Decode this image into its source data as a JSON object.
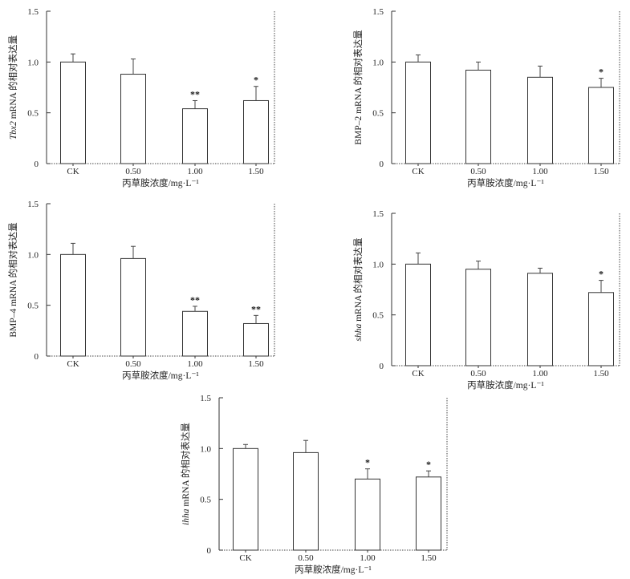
{
  "chart_data": [
    {
      "type": "bar",
      "categories": [
        "CK",
        "0.50",
        "1.00",
        "1.50"
      ],
      "values": [
        1.0,
        0.88,
        0.54,
        0.62
      ],
      "errors": [
        0.08,
        0.15,
        0.08,
        0.14
      ],
      "significance": [
        "",
        "",
        "**",
        "*"
      ],
      "xlabel": "丙草胺浓度/mg·L⁻¹",
      "ylabel_italic": "Tbx2",
      "ylabel_rest": " mRNA 的相对表达量",
      "yticks": [
        "0",
        "0.5",
        "1.0",
        "1.5"
      ],
      "ylim": [
        0,
        1.5
      ]
    },
    {
      "type": "bar",
      "categories": [
        "CK",
        "0.50",
        "1.00",
        "1.50"
      ],
      "values": [
        1.0,
        0.92,
        0.85,
        0.75
      ],
      "errors": [
        0.07,
        0.08,
        0.11,
        0.09
      ],
      "significance": [
        "",
        "",
        "",
        "*"
      ],
      "xlabel": "丙草胺浓度/mg·L⁻¹",
      "ylabel_italic": "",
      "ylabel_rest": "BMP–2 mRNA 的相对表达量",
      "yticks": [
        "0",
        "0.5",
        "1.0",
        "1.5"
      ],
      "ylim": [
        0,
        1.5
      ]
    },
    {
      "type": "bar",
      "categories": [
        "CK",
        "0.50",
        "1.00",
        "1.50"
      ],
      "values": [
        1.0,
        0.96,
        0.44,
        0.32
      ],
      "errors": [
        0.11,
        0.12,
        0.05,
        0.08
      ],
      "significance": [
        "",
        "",
        "**",
        "**"
      ],
      "xlabel": "丙草胺浓度/mg·L⁻¹",
      "ylabel_italic": "",
      "ylabel_rest": "BMP–4 mRNA 的相对表达量",
      "yticks": [
        "0",
        "0.5",
        "1.0",
        "1.5"
      ],
      "ylim": [
        0,
        1.5
      ]
    },
    {
      "type": "bar",
      "categories": [
        "CK",
        "0.50",
        "1.00",
        "1.50"
      ],
      "values": [
        1.0,
        0.95,
        0.91,
        0.72
      ],
      "errors": [
        0.11,
        0.08,
        0.05,
        0.12
      ],
      "significance": [
        "",
        "",
        "",
        "*"
      ],
      "xlabel": "丙草胺浓度/mg·L⁻¹",
      "ylabel_italic": "shha",
      "ylabel_rest": " mRNA 的相对表达量",
      "yticks": [
        "0",
        "0.5",
        "1.0",
        "1.5"
      ],
      "ylim": [
        0,
        1.5
      ]
    },
    {
      "type": "bar",
      "categories": [
        "CK",
        "0.50",
        "1.00",
        "1.50"
      ],
      "values": [
        1.0,
        0.96,
        0.7,
        0.72
      ],
      "errors": [
        0.04,
        0.12,
        0.1,
        0.06
      ],
      "significance": [
        "",
        "",
        "*",
        "*"
      ],
      "xlabel": "丙草胺浓度/mg·L⁻¹",
      "ylabel_italic": "ihha",
      "ylabel_rest": " mRNA 的相对表达量",
      "yticks": [
        "0",
        "0.5",
        "1.0",
        "1.5"
      ],
      "ylim": [
        0,
        1.5
      ]
    }
  ]
}
